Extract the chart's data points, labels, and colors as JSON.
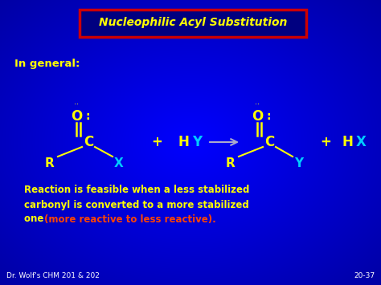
{
  "bg_color": "#0000cc",
  "title_text": "Nucleophilic Acyl Substitution",
  "title_color": "#ffff00",
  "title_box_edge_color": "#cc0000",
  "title_box_face_color": "#000080",
  "in_general_text": "In general:",
  "in_general_color": "#ffff00",
  "reaction_text1": "Reaction is feasible when a less stabilized",
  "reaction_text2": "carbonyl is converted to a more stabilized",
  "reaction_text3_part1": "one ",
  "reaction_text3_part2": "(more reactive to less reactive).",
  "reaction_color_main": "#ffff00",
  "reaction_color_highlight": "#ff4400",
  "footer_left": "Dr. Wolf's CHM 201 & 202",
  "footer_right": "20-37",
  "footer_color": "#ffffff",
  "yellow": "#ffff00",
  "cyan": "#00ccff",
  "white": "#ffffff",
  "red": "#cc0000",
  "orange": "#ff4400",
  "arrow_color": "#aaaacc"
}
